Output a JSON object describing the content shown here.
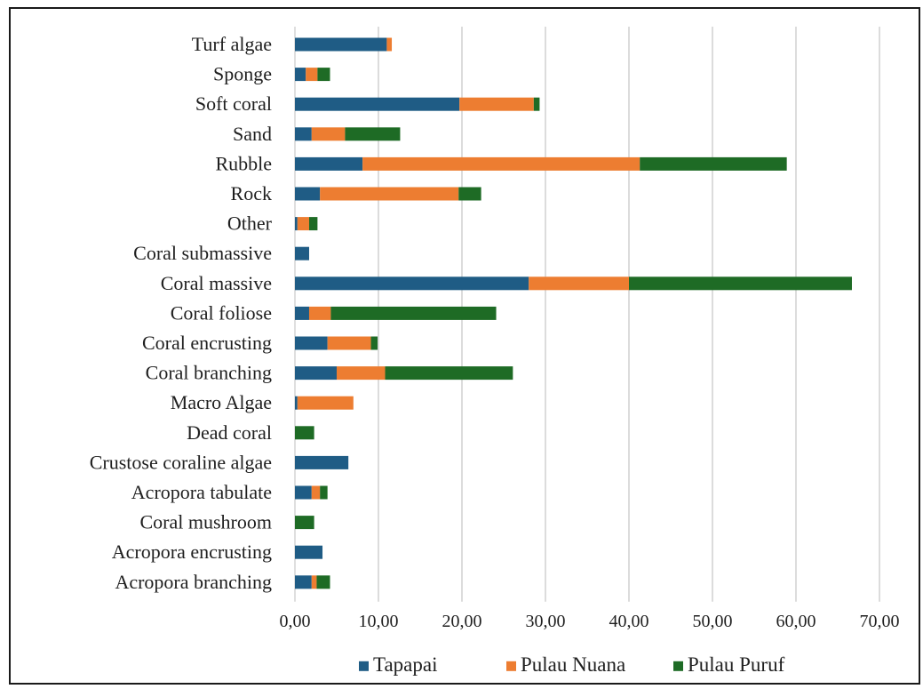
{
  "chart_data": {
    "type": "bar",
    "orientation": "horizontal",
    "stacked": true,
    "categories": [
      "Turf  algae",
      "Sponge",
      "Soft coral",
      "Sand",
      "Rubble",
      "Rock",
      "Other",
      "Coral submassive",
      "Coral massive",
      "Coral foliose",
      "Coral encrusting",
      "Coral branching",
      "Macro Algae",
      "Dead coral",
      "Crustose coraline algae",
      "Acropora tabulate",
      "Coral mushroom",
      "Acropora encrusting",
      "Acropora branching"
    ],
    "series": [
      {
        "name": "Tapapai",
        "color": "#1f5c85",
        "values": [
          11.0,
          1.3,
          19.7,
          2.0,
          8.1,
          3.0,
          0.3,
          1.7,
          28.0,
          1.7,
          3.9,
          5.0,
          0.3,
          0.0,
          6.4,
          2.0,
          0.0,
          3.3,
          2.0
        ]
      },
      {
        "name": "Pulau Nuana",
        "color": "#ed7d31",
        "values": [
          0.6,
          1.4,
          8.9,
          4.0,
          33.2,
          16.6,
          1.4,
          0.0,
          12.0,
          2.6,
          5.2,
          5.8,
          6.7,
          0.0,
          0.0,
          1.0,
          0.0,
          0.0,
          0.6
        ]
      },
      {
        "name": "Pulau Puruf",
        "color": "#1e6b25",
        "values": [
          0.0,
          1.5,
          0.7,
          6.6,
          17.6,
          2.7,
          1.0,
          0.0,
          26.7,
          19.8,
          0.8,
          15.3,
          0.0,
          2.3,
          0.0,
          0.9,
          2.3,
          0.0,
          1.6
        ]
      }
    ],
    "xlim": [
      0,
      70
    ],
    "xticks": [
      "0,00",
      "10,00",
      "20,00",
      "30,00",
      "40,00",
      "50,00",
      "60,00",
      "70,00"
    ],
    "grid": true,
    "legend_position": "bottom"
  },
  "colors": {
    "grid": "#d0d0d0",
    "text": "#1f1f1f"
  }
}
